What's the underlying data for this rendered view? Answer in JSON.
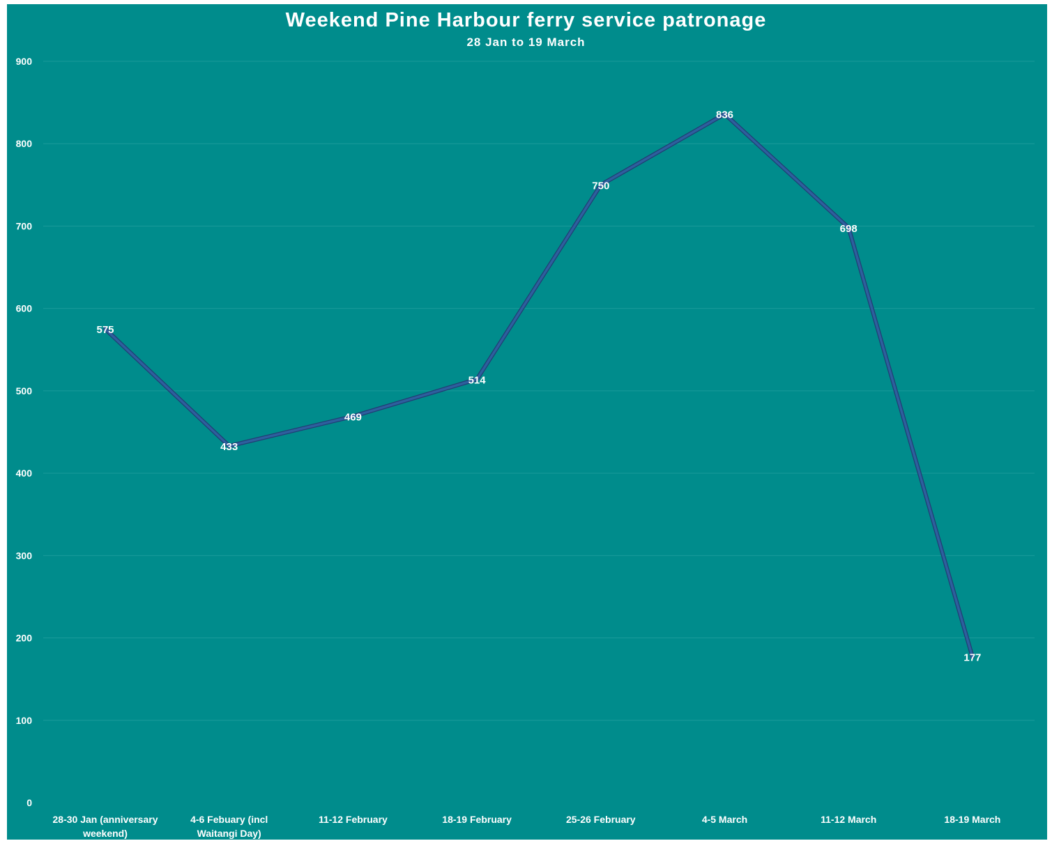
{
  "chart_data": {
    "type": "line",
    "title": "Weekend Pine Harbour ferry service patronage",
    "subtitle": "28 Jan to 19 March",
    "xlabel": "",
    "ylabel": "",
    "categories": [
      "28-30 Jan (anniversary weekend)",
      "4-6 Febuary (incl Waitangi Day)",
      "11-12 February",
      "18-19 February",
      "25-26 February",
      "4-5 March",
      "11-12 March",
      "18-19 March"
    ],
    "category_lines": [
      [
        "28-30 Jan (anniversary",
        "weekend)"
      ],
      [
        "4-6 Febuary (incl",
        "Waitangi Day)"
      ],
      [
        "11-12 February"
      ],
      [
        "18-19 February"
      ],
      [
        "25-26 February"
      ],
      [
        "4-5 March"
      ],
      [
        "11-12 March"
      ],
      [
        "18-19 March"
      ]
    ],
    "series": [
      {
        "values": [
          575,
          433,
          469,
          514,
          750,
          836,
          698,
          177
        ]
      }
    ],
    "data_labels": [
      "575",
      "433",
      "469",
      "514",
      "750",
      "836",
      "698",
      "177"
    ],
    "yticks": [
      "0",
      "100",
      "200",
      "300",
      "400",
      "500",
      "600",
      "700",
      "800",
      "900"
    ],
    "ylim": [
      0,
      900
    ],
    "grid": true,
    "legend": "none",
    "colors": {
      "background": "#008c8c",
      "line": "#2e5f9e",
      "line_outline": "#1f3f73",
      "gridline": "#1a9a9a",
      "text": "#ffffff"
    }
  }
}
